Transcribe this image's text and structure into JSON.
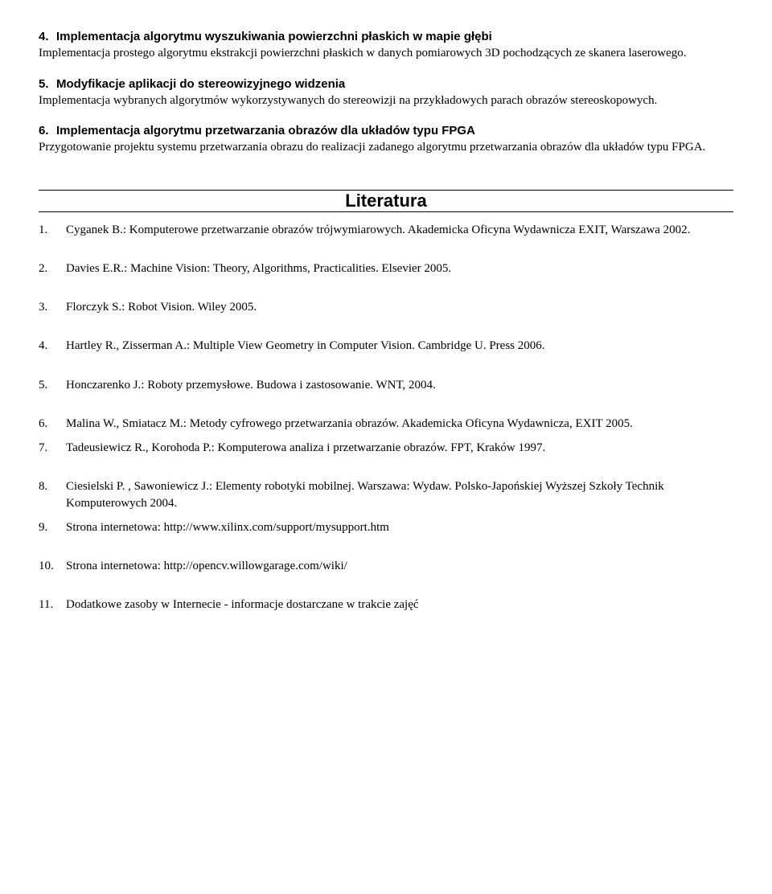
{
  "sections": [
    {
      "num": "4.",
      "title": "Implementacja algorytmu wyszukiwania powierzchni płaskich w mapie głębi",
      "body": "Implementacja prostego algorytmu ekstrakcji powierzchni płaskich w danych pomiarowych 3D pochodzących ze skanera laserowego."
    },
    {
      "num": "5.",
      "title": "Modyfikacje aplikacji do stereowizyjnego widzenia",
      "body": "Implementacja wybranych algorytmów wykorzystywanych do stereowizji na przykładowych parach obrazów stereoskopowych."
    },
    {
      "num": "6.",
      "title": "Implementacja algorytmu przetwarzania obrazów dla układów typu FPGA",
      "body": "Przygotowanie projektu systemu przetwarzania obrazu do realizacji zadanego algorytmu przetwarzania obrazów dla układów typu FPGA."
    }
  ],
  "literature_heading": "Literatura",
  "references": [
    {
      "n": "1.",
      "text": "Cyganek B.: Komputerowe przetwarzanie obrazów trójwymiarowych. Akademicka Oficyna Wydawnicza EXIT, Warszawa 2002.",
      "tight": false
    },
    {
      "n": "2.",
      "text": "Davies E.R.: Machine Vision: Theory, Algorithms, Practicalities. Elsevier 2005.",
      "tight": false
    },
    {
      "n": "3.",
      "text": "Florczyk S.: Robot Vision. Wiley 2005.",
      "tight": false
    },
    {
      "n": "4.",
      "text": "Hartley R., Zisserman A.: Multiple View Geometry in Computer Vision. Cambridge U. Press 2006.",
      "tight": false
    },
    {
      "n": "5.",
      "text": "Honczarenko J.: Roboty przemysłowe. Budowa i zastosowanie. WNT, 2004.",
      "tight": false
    },
    {
      "n": "6.",
      "text": "Malina W., Smiatacz M.: Metody cyfrowego przetwarzania obrazów. Akademicka Oficyna Wydawnicza, EXIT 2005.",
      "tight": true
    },
    {
      "n": "7.",
      "text": "Tadeusiewicz R., Korohoda P.: Komputerowa analiza i przetwarzanie obrazów.  FPT, Kraków 1997.",
      "tight": false
    },
    {
      "n": "8.",
      "text": "Ciesielski P. ,  Sawoniewicz J.: Elementy robotyki mobilnej. Warszawa: Wydaw. Polsko-Japońskiej Wyższej Szkoły Technik Komputerowych 2004.",
      "tight": true
    },
    {
      "n": "9.",
      "text": "Strona internetowa: http://www.xilinx.com/support/mysupport.htm",
      "tight": false
    },
    {
      "n": "10.",
      "text": "Strona internetowa: http://opencv.willowgarage.com/wiki/",
      "tight": false
    },
    {
      "n": "11.",
      "text": "Dodatkowe zasoby w Internecie - informacje dostarczane w trakcie zajęć",
      "tight": false
    }
  ]
}
